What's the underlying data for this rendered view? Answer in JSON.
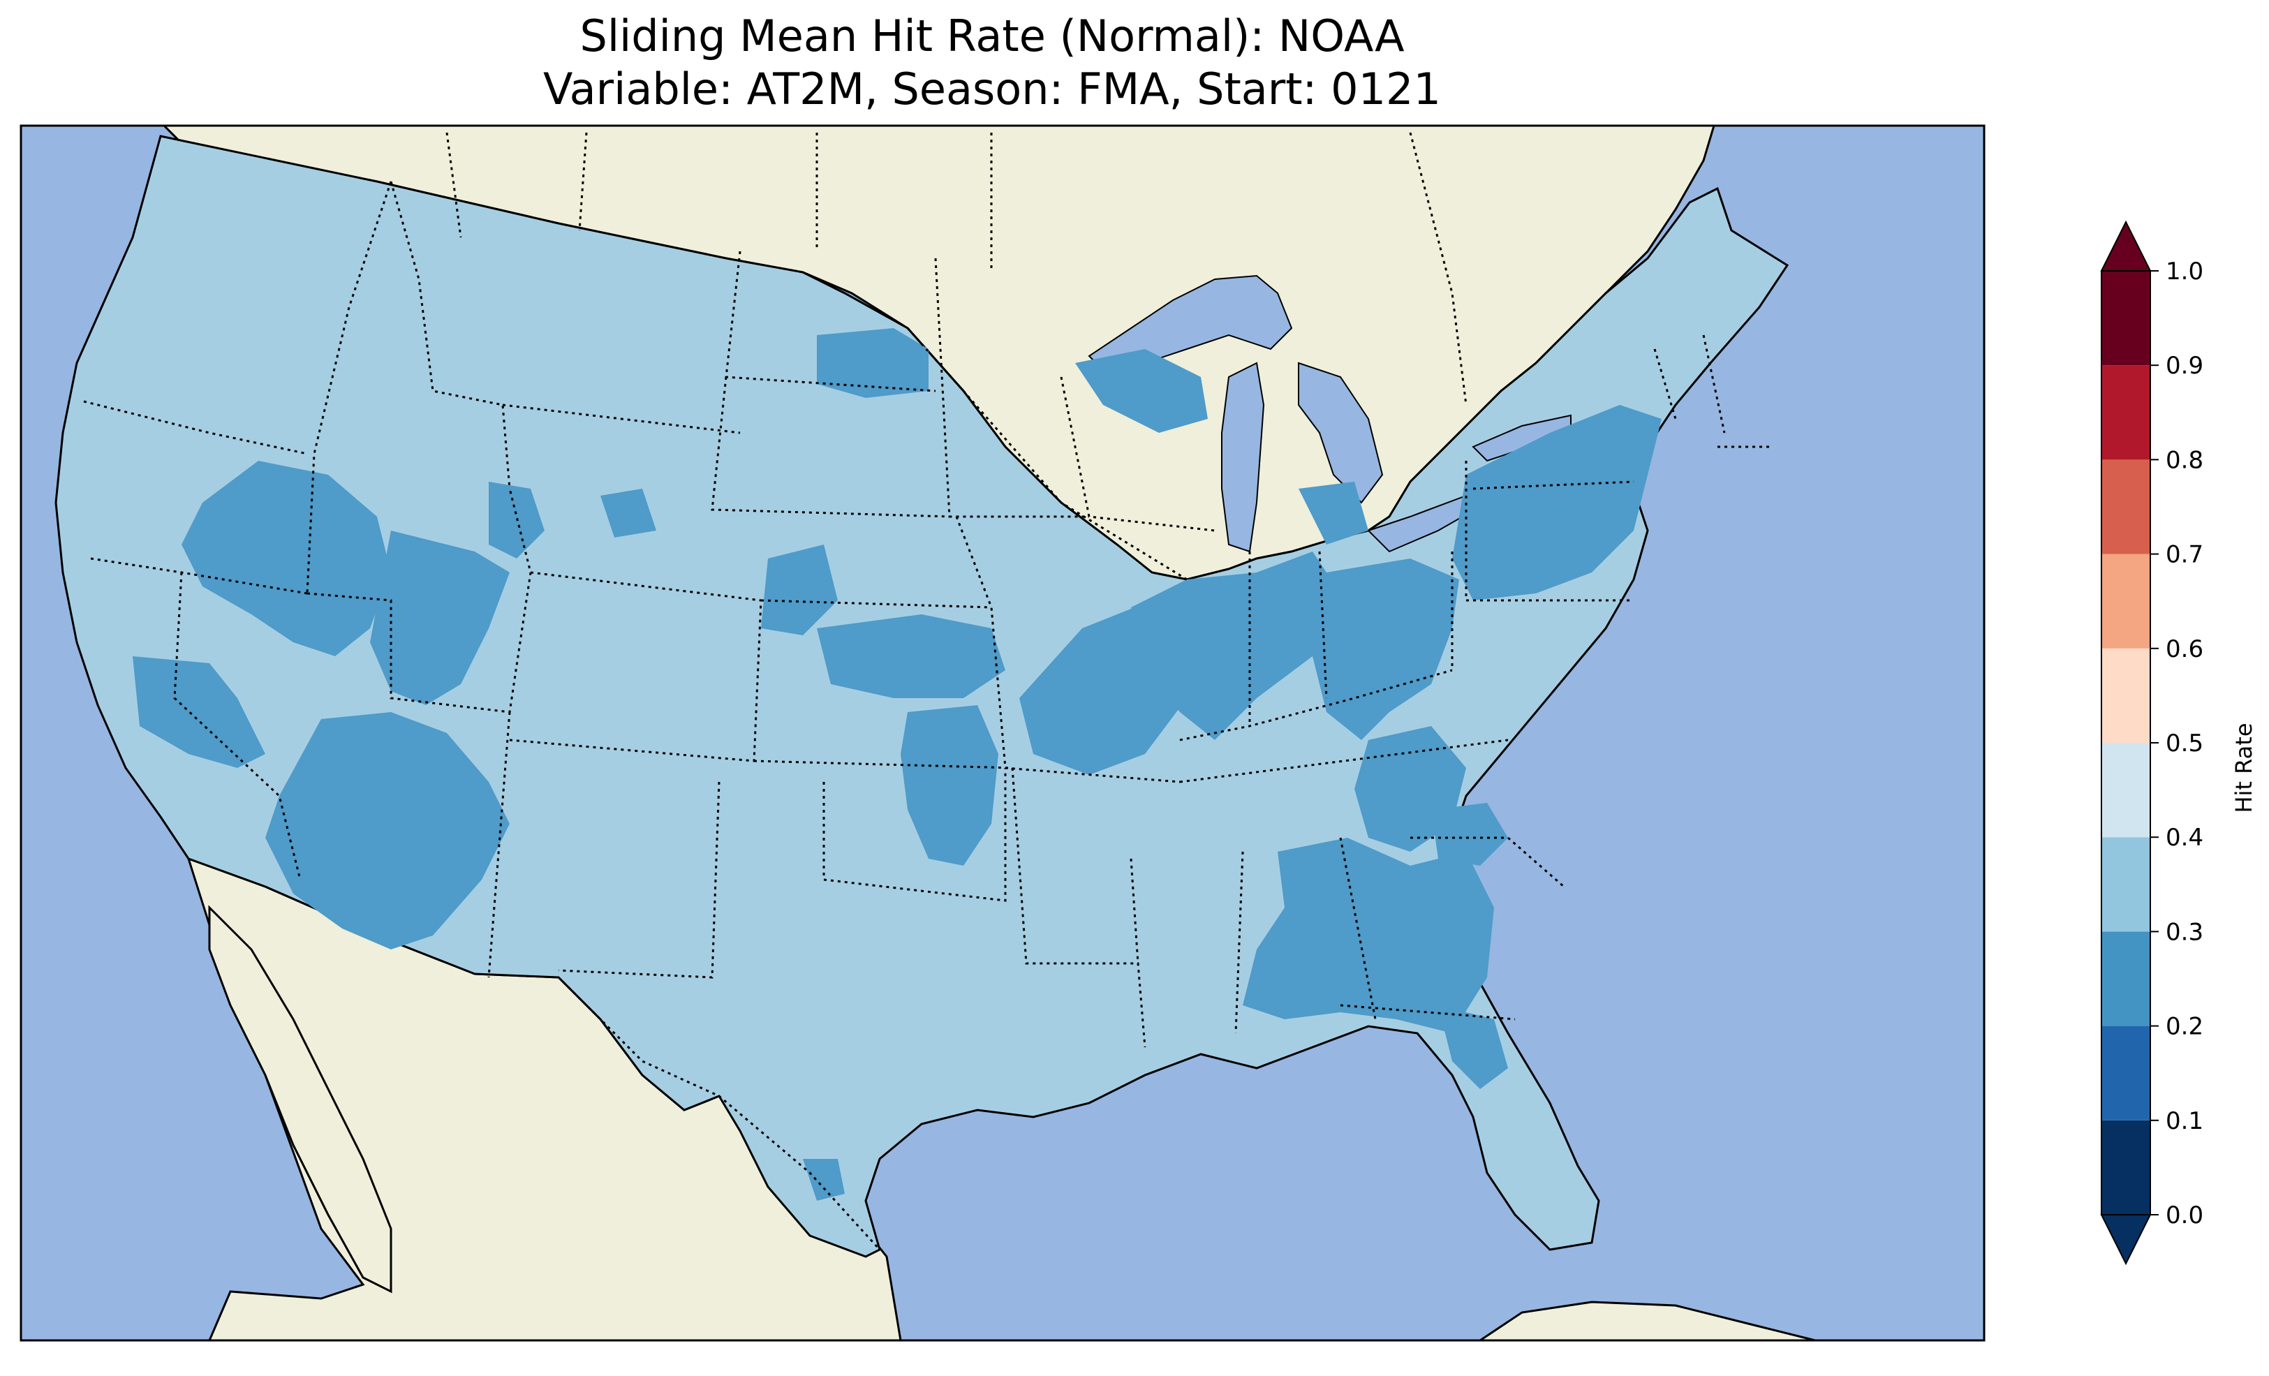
{
  "title": {
    "line1": "Sliding Mean Hit Rate (Normal): NOAA",
    "line2": "Variable: AT2M, Season: FMA, Start: 0121"
  },
  "colors": {
    "ocean": "#97b6e1",
    "land": "#efefdb",
    "lake": "#97b6e1"
  },
  "colorbar": {
    "label": "Hit Rate",
    "ticks": [
      "0.0",
      "0.1",
      "0.2",
      "0.3",
      "0.4",
      "0.5",
      "0.6",
      "0.7",
      "0.8",
      "0.9",
      "1.0"
    ],
    "bins": [
      {
        "from": 0.0,
        "to": 0.1,
        "color": "#053061"
      },
      {
        "from": 0.1,
        "to": 0.2,
        "color": "#2166ac"
      },
      {
        "from": 0.2,
        "to": 0.3,
        "color": "#4393c3"
      },
      {
        "from": 0.3,
        "to": 0.4,
        "color": "#92c5de"
      },
      {
        "from": 0.4,
        "to": 0.5,
        "color": "#d1e5f0"
      },
      {
        "from": 0.5,
        "to": 0.6,
        "color": "#fddbc7"
      },
      {
        "from": 0.6,
        "to": 0.7,
        "color": "#f4a582"
      },
      {
        "from": 0.7,
        "to": 0.8,
        "color": "#d6604d"
      },
      {
        "from": 0.8,
        "to": 0.9,
        "color": "#b2182b"
      },
      {
        "from": 0.9,
        "to": 1.0,
        "color": "#67001f"
      }
    ],
    "under_color": "#053061",
    "over_color": "#67001f"
  },
  "field": {
    "base_bin": "0.3-0.4",
    "base_color": "#a6cee3",
    "low_bin": "0.2-0.3",
    "low_color": "#4f9bc9"
  }
}
